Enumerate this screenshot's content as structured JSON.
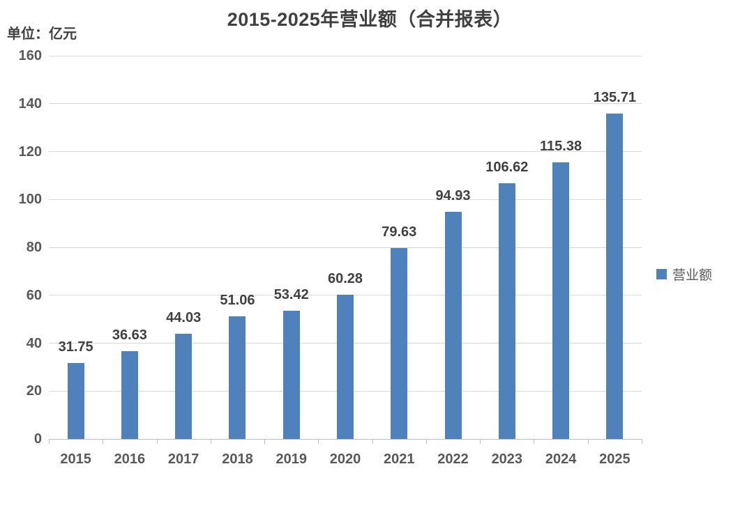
{
  "title": "2015-2025年营业额（合并报表）",
  "unit_label": "单位：亿元",
  "legend": {
    "label": "营业额",
    "marker_color": "#4f81bd"
  },
  "colors": {
    "bar": "#4f81bd",
    "title_text": "#404040",
    "data_label_text": "#404040",
    "tick_label_text": "#595959",
    "gridline": "#d9d9d9",
    "axis_line": "#bfbfbf",
    "background": "#ffffff"
  },
  "chart_data": {
    "type": "bar",
    "title": "2015-2025年营业额（合并报表）",
    "xlabel": "",
    "ylabel": "单位：亿元",
    "categories": [
      "2015",
      "2016",
      "2017",
      "2018",
      "2019",
      "2020",
      "2021",
      "2022",
      "2023",
      "2024",
      "2025"
    ],
    "series": [
      {
        "name": "营业额",
        "values": [
          31.75,
          36.63,
          44.03,
          51.06,
          53.42,
          60.28,
          79.63,
          94.93,
          106.62,
          115.38,
          135.71
        ]
      }
    ],
    "data_labels": [
      "31.75",
      "36.63",
      "44.03",
      "51.06",
      "53.42",
      "60.28",
      "79.63",
      "94.93",
      "106.62",
      "115.38",
      "135.71"
    ],
    "ylim": [
      0,
      160
    ],
    "yticks": [
      0,
      20,
      40,
      60,
      80,
      100,
      120,
      140,
      160
    ],
    "grid": true,
    "legend_position": "right"
  }
}
